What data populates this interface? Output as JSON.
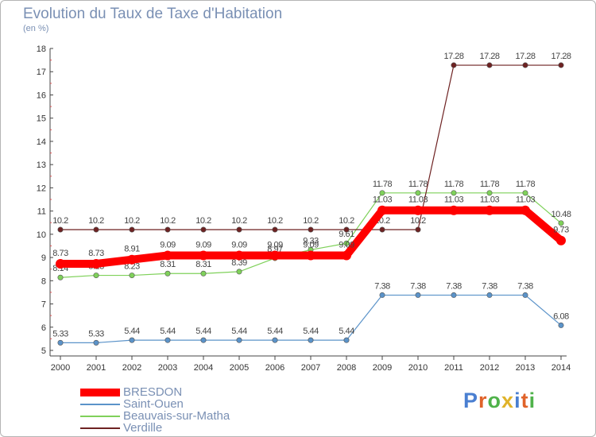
{
  "title": "Evolution du Taux de Taxe d'Habitation",
  "subtitle": "(en %)",
  "logo": {
    "text": "Proxiti",
    "colors": [
      "#4a7fd1",
      "#e0632a",
      "#4fb24a",
      "#e0b32a",
      "#4a7fd1",
      "#e0632a",
      "#4fb24a"
    ]
  },
  "chart_data": {
    "type": "line",
    "x": [
      "2000",
      "2001",
      "2002",
      "2003",
      "2004",
      "2005",
      "2006",
      "2007",
      "2008",
      "2009",
      "2010",
      "2011",
      "2012",
      "2013",
      "2014"
    ],
    "ylim": [
      5,
      18
    ],
    "yticks": [
      5,
      6,
      7,
      8,
      9,
      10,
      11,
      12,
      13,
      14,
      15,
      16,
      17,
      18
    ],
    "series": [
      {
        "name": "BRESDON",
        "color": "#ff0000",
        "values": [
          8.73,
          8.73,
          8.91,
          9.09,
          9.09,
          9.09,
          9.09,
          9.09,
          9.09,
          11.03,
          11.03,
          11.03,
          11.03,
          11.03,
          9.73
        ],
        "labels": [
          "8.73",
          "8.73",
          "8.91",
          "9.09",
          "9.09",
          "9.09",
          "9.09",
          "9.09",
          "9.09",
          "11.03",
          "11.03",
          "11.03",
          "11.03",
          "11.03",
          "9.73"
        ]
      },
      {
        "name": "Saint-Ouen",
        "color": "#5b93c9",
        "values": [
          5.33,
          5.33,
          5.44,
          5.44,
          5.44,
          5.44,
          5.44,
          5.44,
          5.44,
          7.38,
          7.38,
          7.38,
          7.38,
          7.38,
          6.08
        ],
        "labels": [
          "5.33",
          "5.33",
          "5.44",
          "5.44",
          "5.44",
          "5.44",
          "5.44",
          "5.44",
          "5.44",
          "7.38",
          "7.38",
          "7.38",
          "7.38",
          "7.38",
          "6.08"
        ]
      },
      {
        "name": "Beauvais-sur-Matha",
        "color": "#7fd15a",
        "values": [
          8.14,
          8.23,
          8.23,
          8.31,
          8.31,
          8.39,
          8.97,
          9.33,
          9.61,
          11.78,
          11.78,
          11.78,
          11.78,
          11.78,
          10.48
        ],
        "labels": [
          "8.14",
          "8.23",
          "8.23",
          "8.31",
          "8.31",
          "8.39",
          "8.97",
          "9.33",
          "9.61",
          "11.78",
          "11.78",
          "11.78",
          "11.78",
          "11.78",
          "10.48"
        ]
      },
      {
        "name": "Verdille",
        "color": "#6e2222",
        "values": [
          10.2,
          10.2,
          10.2,
          10.2,
          10.2,
          10.2,
          10.2,
          10.2,
          10.2,
          10.2,
          10.2,
          17.28,
          17.28,
          17.28,
          17.28
        ],
        "labels": [
          "10.2",
          "10.2",
          "10.2",
          "10.2",
          "10.2",
          "10.2",
          "10.2",
          "10.2",
          "10.2",
          "10.2",
          "10.2",
          "17.28",
          "17.28",
          "17.28",
          "17.28"
        ]
      }
    ],
    "grid": false,
    "legend": "bottom-left"
  }
}
